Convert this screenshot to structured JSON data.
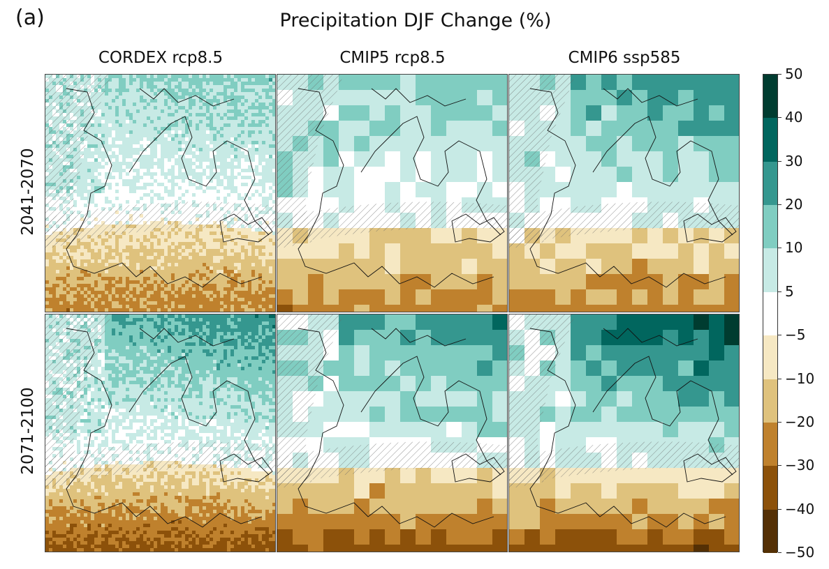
{
  "panel_label": "(a)",
  "title": "Precipitation DJF Change (%)",
  "columns": [
    "CORDEX rcp8.5",
    "CMIP5 rcp8.5",
    "CMIP6 ssp585"
  ],
  "rows": [
    "2041-2070",
    "2071-2100"
  ],
  "colorbar": {
    "ticks": [
      "50",
      "40",
      "30",
      "20",
      "10",
      "5",
      "−5",
      "−10",
      "−20",
      "−30",
      "−40",
      "−50"
    ],
    "colors": [
      "#003c30",
      "#01665e",
      "#35978f",
      "#80cdc1",
      "#c7eae5",
      "#ffffff",
      "#f6e8c3",
      "#dfc27d",
      "#bf812d",
      "#8c510a",
      "#543005"
    ]
  },
  "panels": [
    {
      "row": 0,
      "col": 0,
      "north_class": 3,
      "south_class": 8,
      "east_shift": 0.0,
      "texture": 1
    },
    {
      "row": 0,
      "col": 1,
      "north_class": 3,
      "south_class": 8,
      "east_shift": 0.1,
      "texture": 0
    },
    {
      "row": 0,
      "col": 2,
      "north_class": 2,
      "south_class": 8,
      "east_shift": 0.2,
      "texture": 0
    },
    {
      "row": 1,
      "col": 0,
      "north_class": 2,
      "south_class": 9,
      "east_shift": 0.1,
      "texture": 1
    },
    {
      "row": 1,
      "col": 1,
      "north_class": 2,
      "south_class": 9,
      "east_shift": 0.2,
      "texture": 0
    },
    {
      "row": 1,
      "col": 2,
      "north_class": 1,
      "south_class": 9,
      "east_shift": 0.4,
      "texture": 0
    }
  ]
}
